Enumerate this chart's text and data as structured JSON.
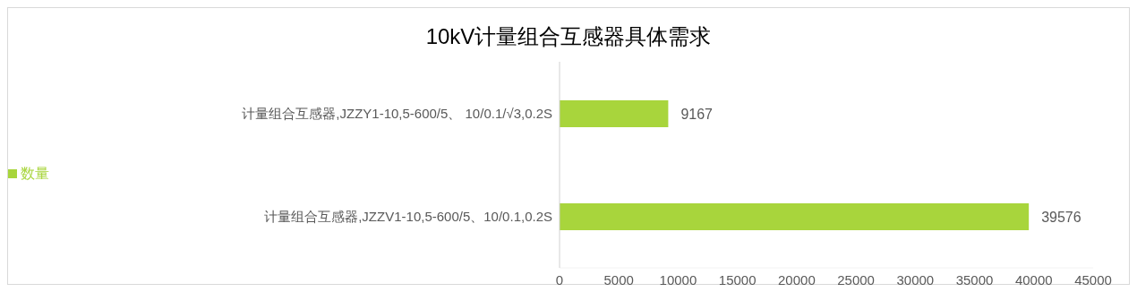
{
  "chart_data": {
    "type": "bar",
    "orientation": "horizontal",
    "title": "10kV计量组合互感器具体需求",
    "categories": [
      "计量组合互感器,JZZY1-10,5-600/5、 10/0.1/√3,0.2S",
      "计量组合互感器,JZZV1-10,5-600/5、10/0.1,0.2S"
    ],
    "series": [
      {
        "name": "数量",
        "color": "#a8d53c",
        "values": [
          9167,
          39576
        ]
      }
    ],
    "xlim": [
      0,
      45000
    ],
    "xticks": [
      0,
      5000,
      10000,
      15000,
      20000,
      25000,
      30000,
      35000,
      40000,
      45000
    ],
    "data_labels": true,
    "legend": "left",
    "grid": false
  }
}
